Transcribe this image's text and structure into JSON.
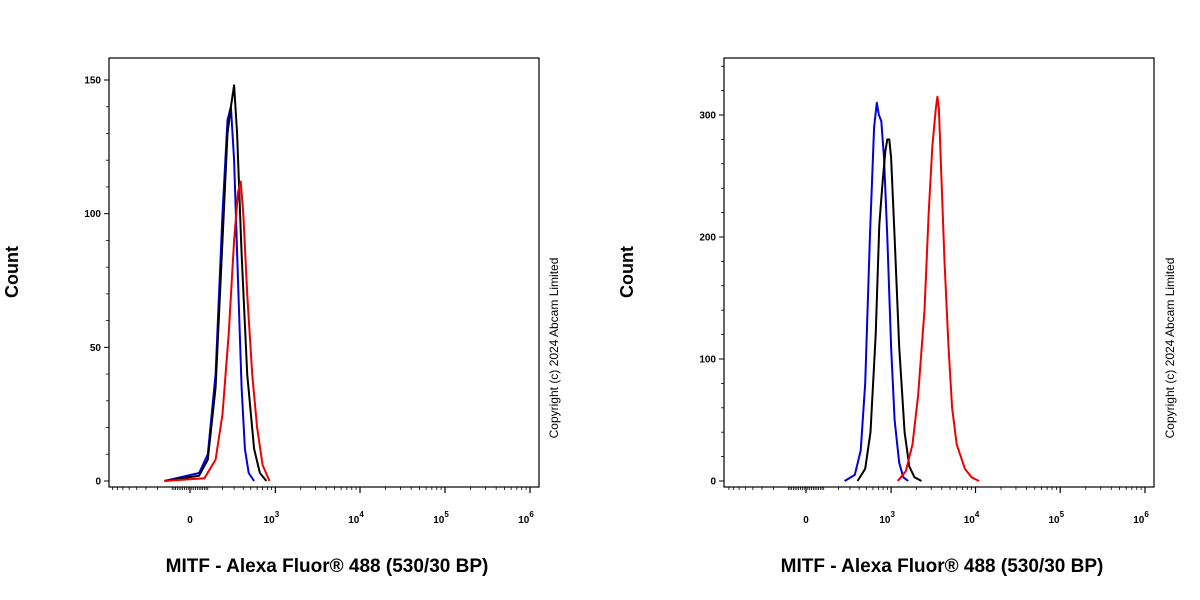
{
  "chart_data": [
    {
      "type": "line",
      "title": "",
      "xlabel": "MITF - Alexa Fluor® 488 (530/30 BP)",
      "ylabel": "Count",
      "x_scale": "biexponential",
      "x_ticks": [
        {
          "value": 0,
          "base": "0",
          "exp": ""
        },
        {
          "value": 1000,
          "base": "10",
          "exp": "3"
        },
        {
          "value": 10000,
          "base": "10",
          "exp": "4"
        },
        {
          "value": 100000,
          "base": "10",
          "exp": "5"
        },
        {
          "value": 1000000,
          "base": "10",
          "exp": "6"
        }
      ],
      "y_ticks": [
        0,
        50,
        100,
        150
      ],
      "ylim": [
        0,
        160
      ],
      "copyright": "Copyright (c) 2024 Abcam Limited",
      "series": [
        {
          "color": "#0000dd",
          "points": [
            [
              -150,
              0
            ],
            [
              50,
              3
            ],
            [
              100,
              10
            ],
            [
              150,
              40
            ],
            [
              200,
              100
            ],
            [
              240,
              135
            ],
            [
              270,
              140
            ],
            [
              300,
              120
            ],
            [
              340,
              75
            ],
            [
              380,
              35
            ],
            [
              420,
              12
            ],
            [
              470,
              3
            ],
            [
              550,
              0
            ]
          ]
        },
        {
          "color": "#000000",
          "points": [
            [
              -150,
              0
            ],
            [
              50,
              2
            ],
            [
              100,
              8
            ],
            [
              150,
              35
            ],
            [
              200,
              90
            ],
            [
              240,
              130
            ],
            [
              270,
              140
            ],
            [
              300,
              148
            ],
            [
              330,
              130
            ],
            [
              380,
              85
            ],
            [
              450,
              40
            ],
            [
              550,
              12
            ],
            [
              650,
              3
            ],
            [
              780,
              0
            ]
          ]
        },
        {
          "color": "#ee0000",
          "points": [
            [
              -150,
              0
            ],
            [
              80,
              1
            ],
            [
              150,
              8
            ],
            [
              200,
              25
            ],
            [
              250,
              55
            ],
            [
              300,
              90
            ],
            [
              340,
              108
            ],
            [
              370,
              112
            ],
            [
              400,
              100
            ],
            [
              450,
              70
            ],
            [
              520,
              40
            ],
            [
              600,
              20
            ],
            [
              700,
              6
            ],
            [
              850,
              0
            ]
          ]
        }
      ]
    },
    {
      "type": "line",
      "title": "",
      "xlabel": "MITF - Alexa Fluor® 488 (530/30 BP)",
      "ylabel": "Count",
      "x_scale": "biexponential",
      "x_ticks": [
        {
          "value": 0,
          "base": "0",
          "exp": ""
        },
        {
          "value": 1000,
          "base": "10",
          "exp": "3"
        },
        {
          "value": 10000,
          "base": "10",
          "exp": "4"
        },
        {
          "value": 100000,
          "base": "10",
          "exp": "5"
        },
        {
          "value": 1000000,
          "base": "10",
          "exp": "6"
        }
      ],
      "y_ticks": [
        0,
        100,
        200,
        300
      ],
      "ylim": [
        0,
        320
      ],
      "copyright": "Copyright (c) 2024 Abcam Limited",
      "series": [
        {
          "color": "#0000dd",
          "points": [
            [
              250,
              0
            ],
            [
              350,
              5
            ],
            [
              420,
              25
            ],
            [
              480,
              80
            ],
            [
              550,
              200
            ],
            [
              620,
              290
            ],
            [
              670,
              310
            ],
            [
              710,
              300
            ],
            [
              760,
              295
            ],
            [
              820,
              265
            ],
            [
              900,
              200
            ],
            [
              1000,
              110
            ],
            [
              1100,
              50
            ],
            [
              1250,
              15
            ],
            [
              1400,
              3
            ],
            [
              1600,
              0
            ]
          ]
        },
        {
          "color": "#000000",
          "points": [
            [
              380,
              0
            ],
            [
              480,
              10
            ],
            [
              560,
              40
            ],
            [
              650,
              120
            ],
            [
              720,
              210
            ],
            [
              790,
              245
            ],
            [
              850,
              270
            ],
            [
              900,
              280
            ],
            [
              950,
              280
            ],
            [
              1000,
              265
            ],
            [
              1100,
              200
            ],
            [
              1250,
              110
            ],
            [
              1450,
              40
            ],
            [
              1650,
              12
            ],
            [
              1900,
              3
            ],
            [
              2300,
              0
            ]
          ]
        },
        {
          "color": "#ee0000",
          "points": [
            [
              1200,
              0
            ],
            [
              1500,
              8
            ],
            [
              1800,
              30
            ],
            [
              2100,
              70
            ],
            [
              2500,
              140
            ],
            [
              2800,
              220
            ],
            [
              3100,
              275
            ],
            [
              3400,
              305
            ],
            [
              3550,
              315
            ],
            [
              3700,
              305
            ],
            [
              3900,
              260
            ],
            [
              4300,
              180
            ],
            [
              4800,
              110
            ],
            [
              5300,
              60
            ],
            [
              6000,
              30
            ],
            [
              7500,
              10
            ],
            [
              9000,
              3
            ],
            [
              11000,
              0
            ]
          ]
        }
      ]
    }
  ]
}
